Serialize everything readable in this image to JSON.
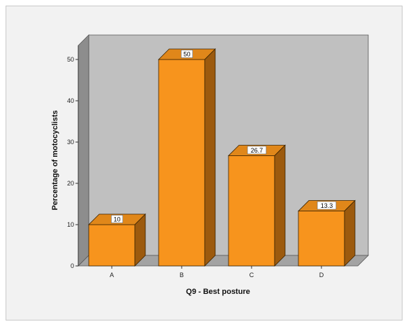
{
  "chart_data": {
    "type": "bar",
    "categories": [
      "A",
      "B",
      "C",
      "D"
    ],
    "values": [
      10,
      50,
      26.7,
      13.3
    ],
    "data_labels": [
      "10",
      "50",
      "26.7",
      "13.3"
    ],
    "xlabel": "Q9 - Best posture",
    "ylabel": "Percentage of motocyclists",
    "ylim": [
      0,
      50
    ],
    "yticks": [
      "0",
      "10",
      "20",
      "30",
      "40",
      "50"
    ],
    "grid": false,
    "style": "3d",
    "colors": {
      "bar_front": "#f7941d",
      "bar_top": "#e0871a",
      "bar_side": "#9c5a0e",
      "back_wall": "#c0c0c0",
      "side_wall": "#8d8d8d",
      "floor": "#a3a3a3"
    }
  }
}
